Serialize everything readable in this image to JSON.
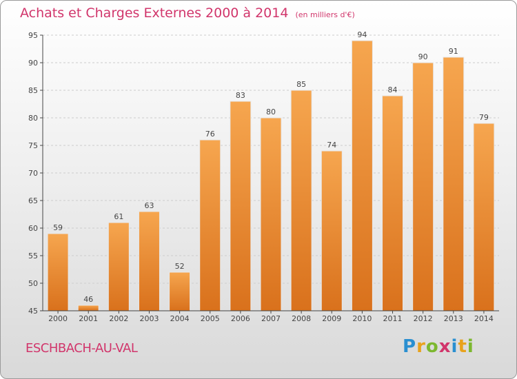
{
  "header": {
    "title": "Achats et Charges Externes 2000 à 2014",
    "subtitle": "(en milliers d'€)"
  },
  "footer": {
    "commune": "ESCHBACH-AU-VAL",
    "brand": [
      "P",
      "r",
      "o",
      "x",
      "i",
      "t",
      "i"
    ],
    "brand_colors": [
      "#2a8fd0",
      "#e8a21c",
      "#7cb82f",
      "#d1356b",
      "#2a8fd0",
      "#e8a21c",
      "#7cb82f"
    ]
  },
  "colors": {
    "bar_top": "#f6a64f",
    "bar_bottom": "#d9711c",
    "grid": "#cccccc",
    "axis": "#444444"
  },
  "chart_data": {
    "type": "bar",
    "title": "Achats et Charges Externes 2000 à 2014",
    "subtitle": "(en milliers d'€)",
    "categories": [
      "2000",
      "2001",
      "2002",
      "2003",
      "2004",
      "2005",
      "2006",
      "2007",
      "2008",
      "2009",
      "2010",
      "2011",
      "2012",
      "2013",
      "2014"
    ],
    "values": [
      59,
      46,
      61,
      63,
      52,
      76,
      83,
      80,
      85,
      74,
      94,
      84,
      90,
      91,
      79
    ],
    "ylim": [
      45,
      95
    ],
    "yticks": [
      45,
      50,
      55,
      60,
      65,
      70,
      75,
      80,
      85,
      90,
      95
    ],
    "xlabel": "",
    "ylabel": "",
    "grid": true
  }
}
